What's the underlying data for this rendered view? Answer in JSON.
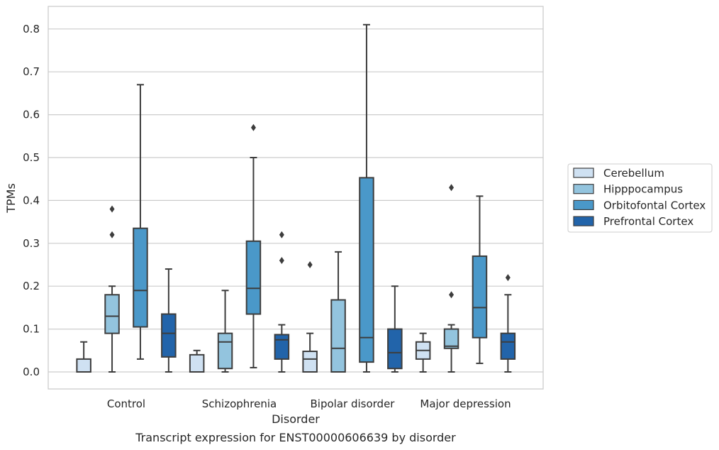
{
  "chart_data": {
    "type": "boxplot",
    "caption": "Transcript expression for ENST00000606639 by disorder",
    "xlabel": "Disorder",
    "ylabel": "TPMs",
    "ylim": [
      -0.04,
      0.855
    ],
    "yticks": [
      0.0,
      0.1,
      0.2,
      0.3,
      0.4,
      0.5,
      0.6,
      0.7,
      0.8
    ],
    "ytick_labels": [
      "0.0",
      "0.1",
      "0.2",
      "0.3",
      "0.4",
      "0.5",
      "0.6",
      "0.7",
      "0.8"
    ],
    "grid": true,
    "legend_position": "right",
    "categories": [
      "Control",
      "Schizophrenia",
      "Bipolar disorder",
      "Major depression"
    ],
    "series": [
      {
        "name": "Cerebellum",
        "color": "#cfe1f2",
        "boxes": [
          {
            "whislo": 0.0,
            "q1": 0.0,
            "med": 0.0,
            "q3": 0.03,
            "whishi": 0.07,
            "fliers": []
          },
          {
            "whislo": 0.0,
            "q1": 0.0,
            "med": 0.0,
            "q3": 0.04,
            "whishi": 0.05,
            "fliers": []
          },
          {
            "whislo": 0.0,
            "q1": 0.0,
            "med": 0.03,
            "q3": 0.048,
            "whishi": 0.09,
            "fliers": [
              0.25
            ]
          },
          {
            "whislo": 0.0,
            "q1": 0.03,
            "med": 0.05,
            "q3": 0.07,
            "whishi": 0.09,
            "fliers": []
          }
        ]
      },
      {
        "name": "Hipppocampus",
        "color": "#93c4de",
        "boxes": [
          {
            "whislo": 0.0,
            "q1": 0.09,
            "med": 0.13,
            "q3": 0.18,
            "whishi": 0.2,
            "fliers": [
              0.32,
              0.38
            ]
          },
          {
            "whislo": 0.0,
            "q1": 0.008,
            "med": 0.07,
            "q3": 0.09,
            "whishi": 0.19,
            "fliers": []
          },
          {
            "whislo": 0.0,
            "q1": 0.0,
            "med": 0.055,
            "q3": 0.168,
            "whishi": 0.28,
            "fliers": []
          },
          {
            "whislo": 0.0,
            "q1": 0.055,
            "med": 0.06,
            "q3": 0.1,
            "whishi": 0.11,
            "fliers": [
              0.18,
              0.43
            ]
          }
        ]
      },
      {
        "name": "Orbitofontal Cortex",
        "color": "#4a98c9",
        "boxes": [
          {
            "whislo": 0.03,
            "q1": 0.105,
            "med": 0.19,
            "q3": 0.335,
            "whishi": 0.67,
            "fliers": []
          },
          {
            "whislo": 0.01,
            "q1": 0.135,
            "med": 0.195,
            "q3": 0.305,
            "whishi": 0.5,
            "fliers": [
              0.57
            ]
          },
          {
            "whislo": 0.0,
            "q1": 0.023,
            "med": 0.08,
            "q3": 0.453,
            "whishi": 0.81,
            "fliers": []
          },
          {
            "whislo": 0.02,
            "q1": 0.08,
            "med": 0.15,
            "q3": 0.27,
            "whishi": 0.41,
            "fliers": []
          }
        ]
      },
      {
        "name": "Prefrontal Cortex",
        "color": "#2264aa",
        "boxes": [
          {
            "whislo": 0.0,
            "q1": 0.035,
            "med": 0.09,
            "q3": 0.135,
            "whishi": 0.24,
            "fliers": []
          },
          {
            "whislo": 0.0,
            "q1": 0.03,
            "med": 0.075,
            "q3": 0.087,
            "whishi": 0.11,
            "fliers": [
              0.26,
              0.32
            ]
          },
          {
            "whislo": 0.0,
            "q1": 0.008,
            "med": 0.045,
            "q3": 0.1,
            "whishi": 0.2,
            "fliers": []
          },
          {
            "whislo": 0.0,
            "q1": 0.03,
            "med": 0.07,
            "q3": 0.09,
            "whishi": 0.18,
            "fliers": [
              0.22
            ]
          }
        ]
      }
    ]
  }
}
